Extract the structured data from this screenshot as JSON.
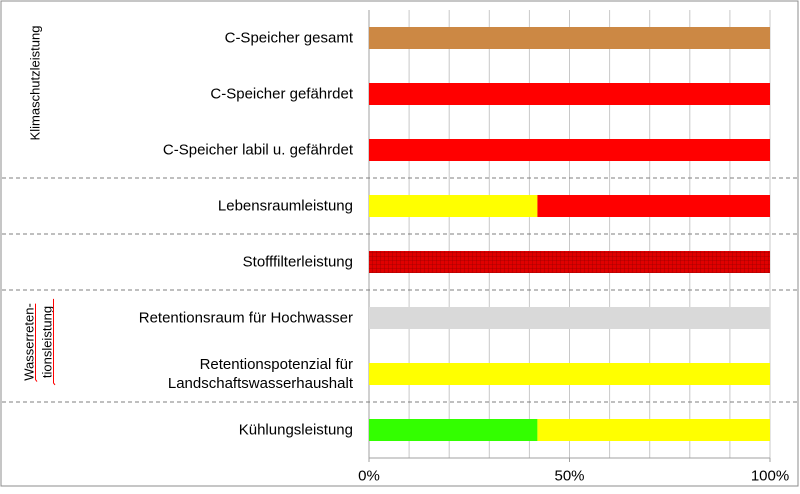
{
  "colors": {
    "orange": "#CC8844",
    "red": "#FF0000",
    "yellow": "#FFFF00",
    "green": "#33FF00",
    "gray": "#D9D9D9",
    "hatch_red": "#E00000",
    "hatch_line": "#990000",
    "grid": "#C8C8C8",
    "frame": "#8C8C8C"
  },
  "chart_data": {
    "type": "bar",
    "orientation": "horizontal",
    "stacked": true,
    "xlim": [
      0,
      100
    ],
    "x_ticks": [
      0,
      50,
      100
    ],
    "x_tick_labels": [
      "0%",
      "50%",
      "100%"
    ],
    "categories": [
      [
        "C-Speicher gesamt"
      ],
      [
        "C-Speicher gefährdet"
      ],
      [
        "C-Speicher labil u. gefährdet"
      ],
      [
        "Lebensraumleistung"
      ],
      [
        "Stofffilterleistung"
      ],
      [
        "Retentionsraum für Hochwasser"
      ],
      [
        "Retentionspotenzial für",
        "Landschaftswasserhaushalt"
      ],
      [
        "Kühlungsleistung"
      ]
    ],
    "bars": [
      [
        {
          "from": 0,
          "to": 100,
          "color": "orange"
        }
      ],
      [
        {
          "from": 0,
          "to": 100,
          "color": "red"
        }
      ],
      [
        {
          "from": 0,
          "to": 100,
          "color": "red"
        }
      ],
      [
        {
          "from": 0,
          "to": 42,
          "color": "yellow"
        },
        {
          "from": 42,
          "to": 100,
          "color": "red"
        }
      ],
      [
        {
          "from": 0,
          "to": 100,
          "color": "red",
          "pattern": "hatched"
        }
      ],
      [
        {
          "from": 0,
          "to": 100,
          "color": "gray"
        }
      ],
      [
        {
          "from": 0,
          "to": 100,
          "color": "yellow"
        }
      ],
      [
        {
          "from": 0,
          "to": 42,
          "color": "green"
        },
        {
          "from": 42,
          "to": 100,
          "color": "yellow"
        }
      ]
    ],
    "groups": [
      {
        "label": "Klimaschutzleistung"
      },
      {
        "label": "Wasserreten-\ntionsleistung",
        "spellcheck_underline": true
      }
    ],
    "group_separators_after": [
      2,
      3,
      4,
      6
    ],
    "grid": true,
    "legend": "none"
  }
}
